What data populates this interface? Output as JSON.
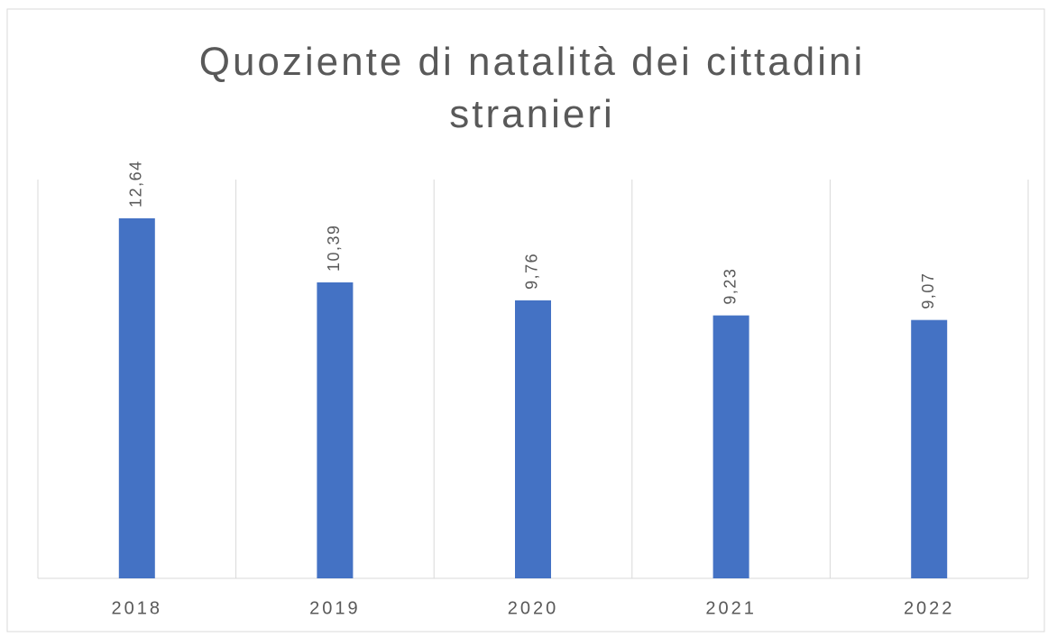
{
  "chart_data": {
    "type": "bar",
    "title": "Quoziente di natalità dei cittadini stranieri",
    "categories": [
      "2018",
      "2019",
      "2020",
      "2021",
      "2022"
    ],
    "values": [
      12.64,
      10.39,
      9.76,
      9.23,
      9.07
    ],
    "value_labels": [
      "12,64",
      "10,39",
      "9,76",
      "9,23",
      "9,07"
    ],
    "color": "#4472c4",
    "ylim": [
      0,
      14
    ]
  }
}
